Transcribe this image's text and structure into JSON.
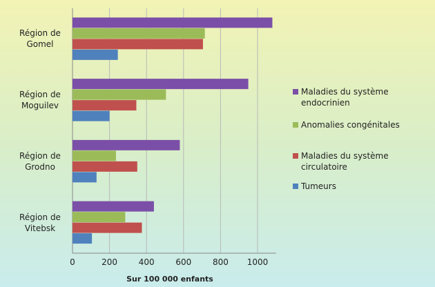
{
  "chart_data": {
    "type": "barh",
    "categories": [
      "Région de Gomel",
      "Région de Moguilev",
      "Région de Grodno",
      "Région de Vitebsk"
    ],
    "series": [
      {
        "name": "Maladies du système endocrinien",
        "color": "#7b4fa8",
        "values": [
          1080,
          950,
          580,
          440
        ]
      },
      {
        "name": "Anomalies congénitales",
        "color": "#9bbb59",
        "values": [
          715,
          505,
          235,
          285
        ]
      },
      {
        "name": "Maladies du système circulatoire",
        "color": "#c0504d",
        "values": [
          705,
          345,
          350,
          375
        ]
      },
      {
        "name": "Tumeurs",
        "color": "#4f81bd",
        "values": [
          245,
          200,
          130,
          105
        ]
      }
    ],
    "xlabel": "Sur 100 000 enfants",
    "xlim": [
      0,
      1100
    ],
    "xticks": [
      0,
      200,
      400,
      600,
      800,
      1000
    ],
    "grid": true,
    "legend": "right"
  }
}
